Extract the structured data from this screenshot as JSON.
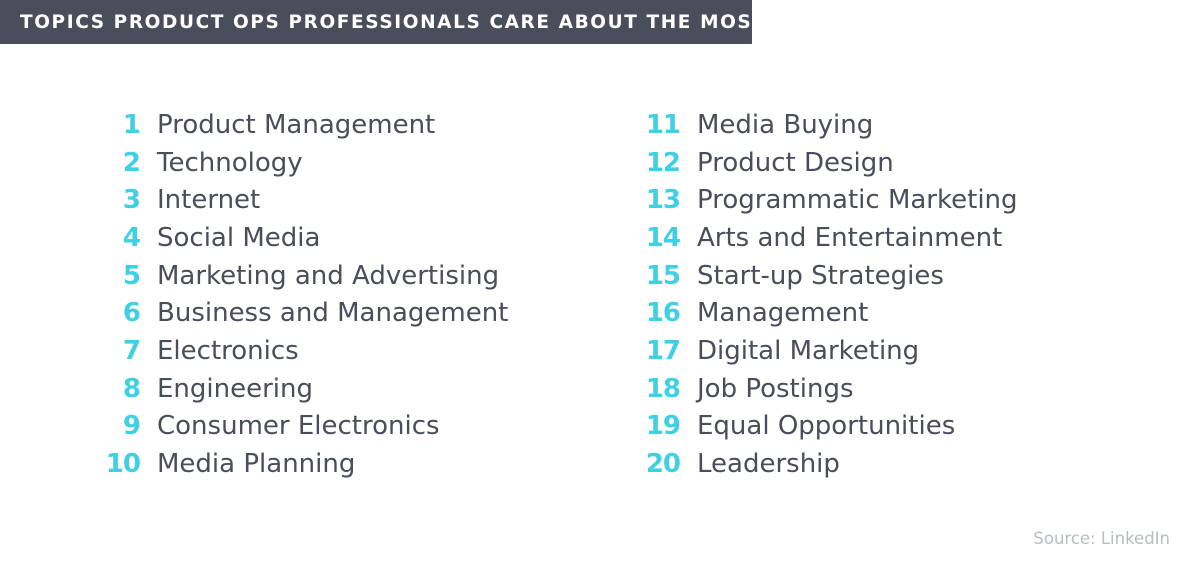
{
  "colors": {
    "header_bg": "#4a4d5a",
    "header_text": "#ffffff",
    "number_accent": "#3fd0e3",
    "item_text": "#4a4d5a",
    "source_text": "#b8bcc4"
  },
  "header": {
    "title": "TOPICS PRODUCT OPS PROFESSIONALS CARE ABOUT THE MOST"
  },
  "topics": {
    "left": [
      {
        "rank": "1",
        "label": "Product Management"
      },
      {
        "rank": "2",
        "label": "Technology"
      },
      {
        "rank": "3",
        "label": "Internet"
      },
      {
        "rank": "4",
        "label": "Social Media"
      },
      {
        "rank": "5",
        "label": "Marketing and Advertising"
      },
      {
        "rank": "6",
        "label": "Business and Management"
      },
      {
        "rank": "7",
        "label": "Electronics"
      },
      {
        "rank": "8",
        "label": "Engineering"
      },
      {
        "rank": "9",
        "label": "Consumer Electronics"
      },
      {
        "rank": "10",
        "label": "Media Planning"
      }
    ],
    "right": [
      {
        "rank": "11",
        "label": "Media Buying"
      },
      {
        "rank": "12",
        "label": "Product Design"
      },
      {
        "rank": "13",
        "label": "Programmatic Marketing"
      },
      {
        "rank": "14",
        "label": "Arts and Entertainment"
      },
      {
        "rank": "15",
        "label": "Start-up Strategies"
      },
      {
        "rank": "16",
        "label": "Management"
      },
      {
        "rank": "17",
        "label": "Digital Marketing"
      },
      {
        "rank": "18",
        "label": "Job Postings"
      },
      {
        "rank": "19",
        "label": "Equal Opportunities"
      },
      {
        "rank": "20",
        "label": "Leadership"
      }
    ]
  },
  "footer": {
    "source": "Source: LinkedIn"
  }
}
